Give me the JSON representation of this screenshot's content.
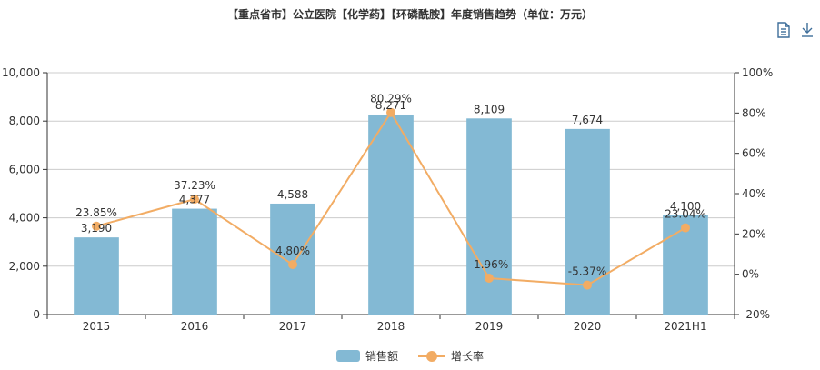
{
  "title": "【重点省市】公立医院【化学药】【环磷酰胺】年度销售趋势（单位：万元）",
  "toolbar": {
    "icons": [
      "data-view-icon",
      "download-icon"
    ]
  },
  "legend": {
    "bar_label": "销售额",
    "line_label": "增长率"
  },
  "colors": {
    "bar": "#83b9d4",
    "line": "#f2ac64",
    "grid": "#cccccc",
    "axis": "#333333"
  },
  "chart_data": {
    "type": "bar",
    "categories": [
      "2015",
      "2016",
      "2017",
      "2018",
      "2019",
      "2020",
      "2021H1"
    ],
    "series": [
      {
        "name": "销售额",
        "type": "bar",
        "axis": "left",
        "values": [
          3190,
          4377,
          4588,
          8271,
          8109,
          7674,
          4100
        ],
        "labels": [
          "3,190",
          "4,377",
          "4,588",
          "8,271",
          "8,109",
          "7,674",
          "4,100"
        ]
      },
      {
        "name": "增长率",
        "type": "line",
        "axis": "right",
        "values": [
          23.85,
          37.23,
          4.8,
          80.29,
          -1.96,
          -5.37,
          23.04
        ],
        "labels": [
          "23.85%",
          "37.23%",
          "4.80%",
          "80.29%",
          "-1.96%",
          "-5.37%",
          "23.04%"
        ]
      }
    ],
    "y_left": {
      "min": 0,
      "max": 10000,
      "ticks": [
        "0",
        "2,000",
        "4,000",
        "6,000",
        "8,000",
        "10,000"
      ]
    },
    "y_right": {
      "min": -20,
      "max": 100,
      "ticks": [
        "-20%",
        "0%",
        "20%",
        "40%",
        "60%",
        "80%",
        "100%"
      ]
    },
    "grid": true,
    "legend_position": "bottom"
  }
}
